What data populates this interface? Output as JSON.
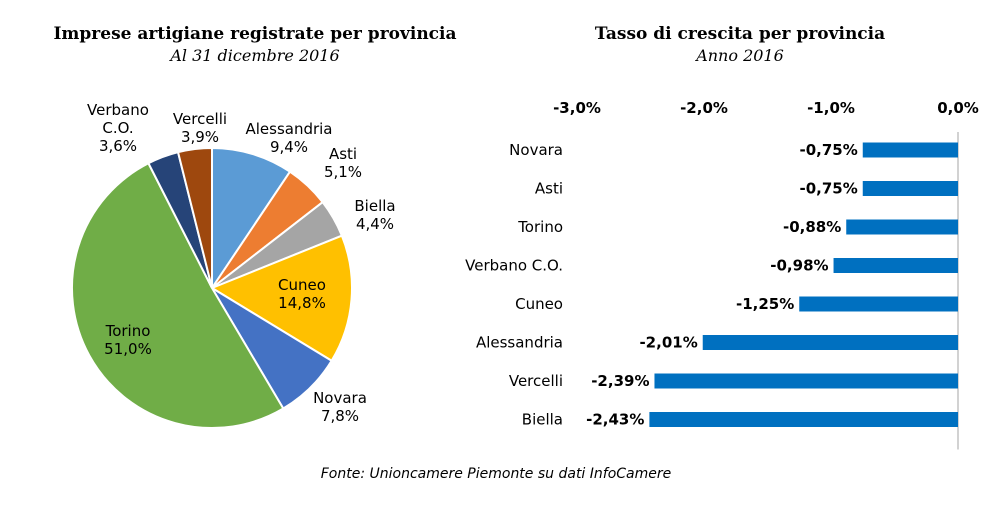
{
  "chart_data": [
    {
      "type": "pie",
      "title": "Imprese artigiane registrate per provincia",
      "subtitle": "Al 31 dicembre 2016",
      "slices": [
        {
          "label": "Alessandria",
          "label_lines": [
            "Alessandria"
          ],
          "value_label": "9,4%",
          "value": 9.4,
          "color": "#5B9BD5"
        },
        {
          "label": "Asti",
          "label_lines": [
            "Asti"
          ],
          "value_label": "5,1%",
          "value": 5.1,
          "color": "#ED7D31"
        },
        {
          "label": "Biella",
          "label_lines": [
            "Biella"
          ],
          "value_label": "4,4%",
          "value": 4.4,
          "color": "#A5A5A5"
        },
        {
          "label": "Cuneo",
          "label_lines": [
            "Cuneo"
          ],
          "value_label": "14,8%",
          "value": 14.8,
          "color": "#FFC000"
        },
        {
          "label": "Novara",
          "label_lines": [
            "Novara"
          ],
          "value_label": "7,8%",
          "value": 7.8,
          "color": "#4472C4"
        },
        {
          "label": "Torino",
          "label_lines": [
            "Torino"
          ],
          "value_label": "51,0%",
          "value": 51.0,
          "color": "#70AD47"
        },
        {
          "label": "Verbano C.O.",
          "label_lines": [
            "Verbano",
            "C.O."
          ],
          "value_label": "3,6%",
          "value": 3.6,
          "color": "#264478"
        },
        {
          "label": "Vercelli",
          "label_lines": [
            "Vercelli"
          ],
          "value_label": "3,9%",
          "value": 3.9,
          "color": "#9E480E"
        }
      ]
    },
    {
      "type": "bar",
      "orientation": "horizontal",
      "title": "Tasso di crescita per provincia",
      "subtitle": "Anno 2016",
      "categories": [
        "Novara",
        "Asti",
        "Torino",
        "Verbano C.O.",
        "Cuneo",
        "Alessandria",
        "Vercelli",
        "Biella"
      ],
      "values": [
        -0.75,
        -0.75,
        -0.88,
        -0.98,
        -1.25,
        -2.01,
        -2.39,
        -2.43
      ],
      "value_labels": [
        "-0,75%",
        "-0,75%",
        "-0,88%",
        "-0,98%",
        "-1,25%",
        "-2,01%",
        "-2,39%",
        "-2,43%"
      ],
      "xlim": [
        -3.0,
        0.0
      ],
      "xticks": [
        -3.0,
        -2.0,
        -1.0,
        0.0
      ],
      "xtick_labels": [
        "-3,0%",
        "-2,0%",
        "-1,0%",
        "0,0%"
      ],
      "axis_position": "top",
      "bar_color": "#0070C0",
      "grid": false
    }
  ],
  "source": "Fonte: Unioncamere Piemonte su dati InfoCamere"
}
